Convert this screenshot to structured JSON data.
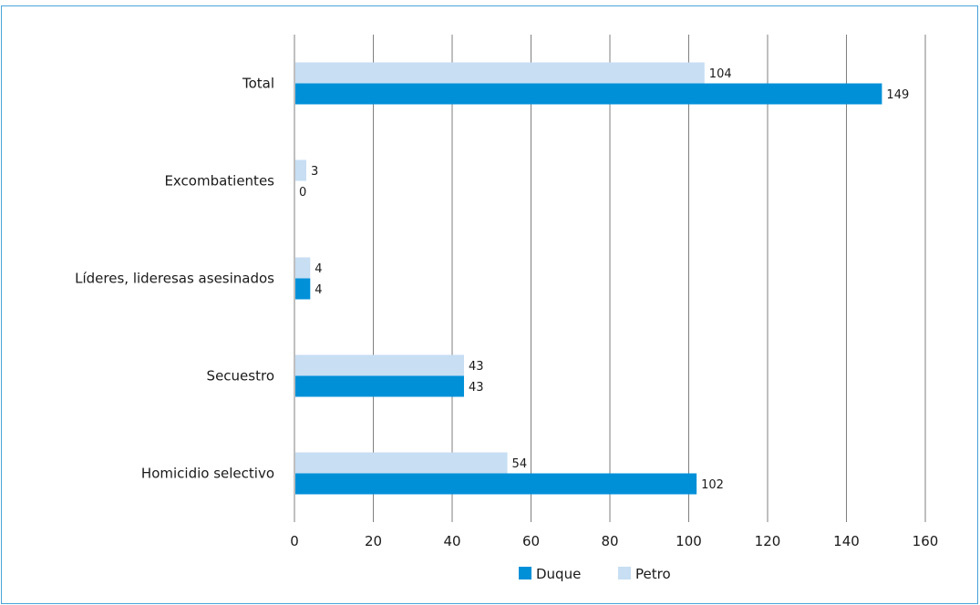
{
  "colors": {
    "duque": "#0090d8",
    "petro": "#c7def3",
    "grid": "#7f7f7f",
    "frame": "#4aa3d8"
  },
  "chart_data": {
    "type": "bar",
    "orientation": "horizontal",
    "categories": [
      "Total",
      "Excombatientes",
      "Líderes, lideresas asesinados",
      "Secuestro",
      "Homicidio selectivo"
    ],
    "series": [
      {
        "name": "Petro",
        "values": [
          104,
          3,
          4,
          43,
          54
        ]
      },
      {
        "name": "Duque",
        "values": [
          149,
          0,
          4,
          43,
          102
        ]
      }
    ],
    "xlim": [
      0,
      160
    ],
    "xticks": [
      0,
      20,
      40,
      60,
      80,
      100,
      120,
      140,
      160
    ],
    "grid": "vertical",
    "legend": {
      "position": "bottom",
      "entries": [
        "Duque",
        "Petro"
      ]
    }
  }
}
